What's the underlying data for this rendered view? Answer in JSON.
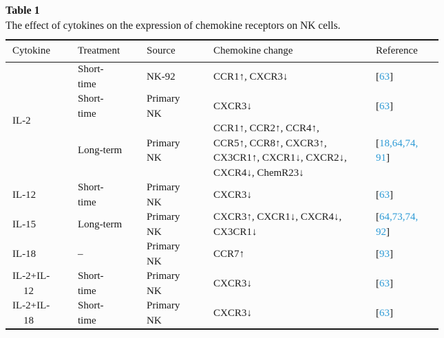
{
  "page": {
    "label": "Table 1",
    "caption": "The effect of cytokines on the expression of chemokine receptors on NK cells."
  },
  "link_color": "#2e9bd6",
  "columns": [
    "Cytokine",
    "Treatment",
    "Source",
    "Chemokine change",
    "Reference"
  ],
  "rows": [
    {
      "cytokine_lines": [
        "IL-2"
      ],
      "rowspan": 3,
      "treatment_lines": [
        "Short-",
        "time"
      ],
      "source_lines": [
        "NK-92"
      ],
      "change_lines": [
        "CCR1↑, CXCR3↓"
      ],
      "reference_lines": [
        [
          {
            "t": "[",
            "kind": "bracket"
          },
          {
            "t": "63",
            "kind": "ref"
          },
          {
            "t": "]",
            "kind": "bracket"
          }
        ]
      ]
    },
    {
      "treatment_lines": [
        "Short-",
        "time"
      ],
      "source_lines": [
        "Primary",
        "NK"
      ],
      "change_lines": [
        "CXCR3↓"
      ],
      "reference_lines": [
        [
          {
            "t": "[",
            "kind": "bracket"
          },
          {
            "t": "63",
            "kind": "ref"
          },
          {
            "t": "]",
            "kind": "bracket"
          }
        ]
      ]
    },
    {
      "treatment_lines": [
        "Long-term"
      ],
      "source_lines": [
        "Primary",
        "NK"
      ],
      "change_lines": [
        "CCR1↑, CCR2↑, CCR4↑,",
        "CCR5↑, CCR8↑, CXCR3↑,",
        "CX3CR1↑, CXCR1↓, CXCR2↓,",
        "CXCR4↓, ChemR23↓"
      ],
      "reference_lines": [
        [
          {
            "t": "[",
            "kind": "bracket"
          },
          {
            "t": "18",
            "kind": "ref"
          },
          {
            "t": ",",
            "kind": "sep"
          },
          {
            "t": "64",
            "kind": "ref"
          },
          {
            "t": ",",
            "kind": "sep"
          },
          {
            "t": "74",
            "kind": "ref"
          },
          {
            "t": ",",
            "kind": "sep"
          }
        ],
        [
          {
            "t": "91",
            "kind": "ref"
          },
          {
            "t": "]",
            "kind": "bracket"
          }
        ]
      ]
    },
    {
      "cytokine_lines": [
        "IL-12"
      ],
      "rowspan": 1,
      "treatment_lines": [
        "Short-",
        "time"
      ],
      "source_lines": [
        "Primary",
        "NK"
      ],
      "change_lines": [
        "CXCR3↓"
      ],
      "reference_lines": [
        [
          {
            "t": "[",
            "kind": "bracket"
          },
          {
            "t": "63",
            "kind": "ref"
          },
          {
            "t": "]",
            "kind": "bracket"
          }
        ]
      ]
    },
    {
      "cytokine_lines": [
        "IL-15"
      ],
      "rowspan": 1,
      "treatment_lines": [
        "Long-term"
      ],
      "source_lines": [
        "Primary",
        "NK"
      ],
      "change_lines": [
        "CXCR3↑, CXCR1↓, CXCR4↓,",
        "CX3CR1↓"
      ],
      "reference_lines": [
        [
          {
            "t": "[",
            "kind": "bracket"
          },
          {
            "t": "64",
            "kind": "ref"
          },
          {
            "t": ",",
            "kind": "sep"
          },
          {
            "t": "73",
            "kind": "ref"
          },
          {
            "t": ",",
            "kind": "sep"
          },
          {
            "t": "74",
            "kind": "ref"
          },
          {
            "t": ",",
            "kind": "sep"
          }
        ],
        [
          {
            "t": "92",
            "kind": "ref"
          },
          {
            "t": "]",
            "kind": "bracket"
          }
        ]
      ]
    },
    {
      "cytokine_lines": [
        "IL-18"
      ],
      "rowspan": 1,
      "treatment_lines": [
        "–"
      ],
      "source_lines": [
        "Primary",
        "NK"
      ],
      "change_lines": [
        "CCR7↑"
      ],
      "reference_lines": [
        [
          {
            "t": "[",
            "kind": "bracket"
          },
          {
            "t": "93",
            "kind": "ref"
          },
          {
            "t": "]",
            "kind": "bracket"
          }
        ]
      ]
    },
    {
      "cytokine_lines": [
        "IL-2+IL-",
        "12"
      ],
      "rowspan": 1,
      "treatment_lines": [
        "Short-",
        "time"
      ],
      "source_lines": [
        "Primary",
        "NK"
      ],
      "change_lines": [
        "CXCR3↓"
      ],
      "reference_lines": [
        [
          {
            "t": "[",
            "kind": "bracket"
          },
          {
            "t": "63",
            "kind": "ref"
          },
          {
            "t": "]",
            "kind": "bracket"
          }
        ]
      ]
    },
    {
      "cytokine_lines": [
        "IL-2+IL-",
        "18"
      ],
      "rowspan": 1,
      "treatment_lines": [
        "Short-",
        "time"
      ],
      "source_lines": [
        "Primary",
        "NK"
      ],
      "change_lines": [
        "CXCR3↓"
      ],
      "reference_lines": [
        [
          {
            "t": "[",
            "kind": "bracket"
          },
          {
            "t": "63",
            "kind": "ref"
          },
          {
            "t": "]",
            "kind": "bracket"
          }
        ]
      ]
    }
  ]
}
